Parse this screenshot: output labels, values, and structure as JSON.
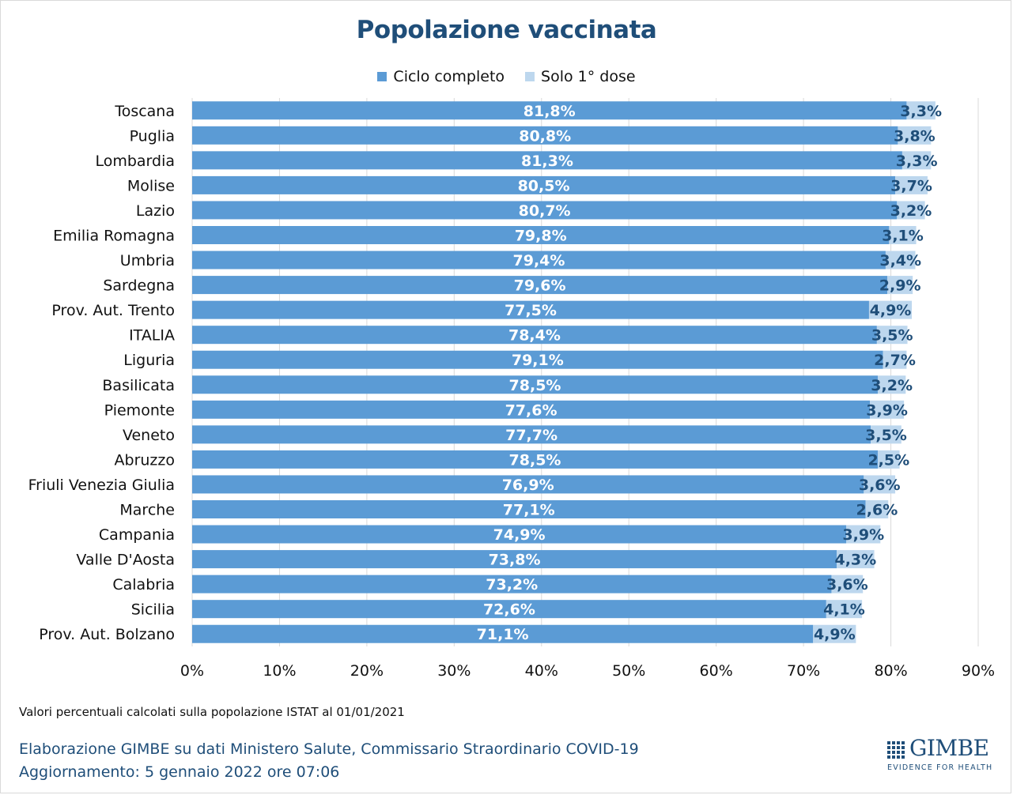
{
  "chart_data": {
    "type": "bar",
    "orientation": "horizontal",
    "stacked": true,
    "title": "Popolazione vaccinata",
    "categories": [
      "Toscana",
      "Puglia",
      "Lombardia",
      "Molise",
      "Lazio",
      "Emilia Romagna",
      "Umbria",
      "Sardegna",
      "Prov. Aut. Trento",
      "ITALIA",
      "Liguria",
      "Basilicata",
      "Piemonte",
      "Veneto",
      "Abruzzo",
      "Friuli Venezia Giulia",
      "Marche",
      "Campania",
      "Valle D'Aosta",
      "Calabria",
      "Sicilia",
      "Prov. Aut. Bolzano"
    ],
    "series": [
      {
        "name": "Ciclo completo",
        "color": "#5b9bd5",
        "values": [
          81.8,
          80.8,
          81.3,
          80.5,
          80.7,
          79.8,
          79.4,
          79.6,
          77.5,
          78.4,
          79.1,
          78.5,
          77.6,
          77.7,
          78.5,
          76.9,
          77.1,
          74.9,
          73.8,
          73.2,
          72.6,
          71.1
        ],
        "labels": [
          "81,8%",
          "80,8%",
          "81,3%",
          "80,5%",
          "80,7%",
          "79,8%",
          "79,4%",
          "79,6%",
          "77,5%",
          "78,4%",
          "79,1%",
          "78,5%",
          "77,6%",
          "77,7%",
          "78,5%",
          "76,9%",
          "77,1%",
          "74,9%",
          "73,8%",
          "73,2%",
          "72,6%",
          "71,1%"
        ]
      },
      {
        "name": "Solo 1° dose",
        "color": "#bdd7ee",
        "values": [
          3.3,
          3.8,
          3.3,
          3.7,
          3.2,
          3.1,
          3.4,
          2.9,
          4.9,
          3.5,
          2.7,
          3.2,
          3.9,
          3.5,
          2.5,
          3.6,
          2.6,
          3.9,
          4.3,
          3.6,
          4.1,
          4.9
        ],
        "labels": [
          "3,3%",
          "3,8%",
          "3,3%",
          "3,7%",
          "3,2%",
          "3,1%",
          "3,4%",
          "2,9%",
          "4,9%",
          "3,5%",
          "2,7%",
          "3,2%",
          "3,9%",
          "3,5%",
          "2,5%",
          "3,6%",
          "2,6%",
          "3,9%",
          "4,3%",
          "3,6%",
          "4,1%",
          "4,9%"
        ]
      }
    ],
    "xlim": [
      0,
      90
    ],
    "xticks": [
      0,
      10,
      20,
      30,
      40,
      50,
      60,
      70,
      80,
      90
    ],
    "xtick_labels": [
      "0%",
      "10%",
      "20%",
      "30%",
      "40%",
      "50%",
      "60%",
      "70%",
      "80%",
      "90%"
    ],
    "grid": true,
    "legend_position": "top-center"
  },
  "footnote": "Valori percentuali calcolati sulla popolazione ISTAT al 01/01/2021",
  "source_line1": "Elaborazione GIMBE su dati Ministero Salute, Commissario Straordinario COVID-19",
  "source_line2": "Aggiornamento: 5 gennaio 2022 ore 07:06",
  "logo": {
    "name": "GIMBE",
    "tagline": "EVIDENCE FOR HEALTH"
  }
}
